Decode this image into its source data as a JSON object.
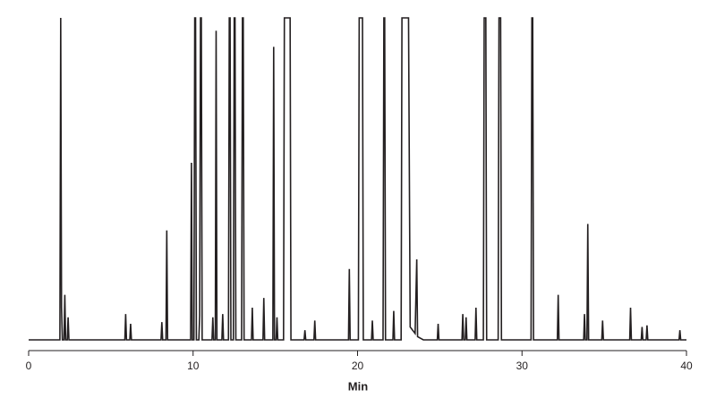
{
  "chart_data": {
    "type": "line",
    "xlabel": "Min",
    "color": "#231f20",
    "xlim": [
      0,
      40
    ],
    "xticks": [
      0,
      10,
      20,
      30,
      40
    ],
    "ylim": [
      0,
      100
    ],
    "x": [
      0,
      1.9,
      1.95,
      2.0,
      2.05,
      2.15,
      2.2,
      2.25,
      2.35,
      2.4,
      2.45,
      5.85,
      5.9,
      5.95,
      6.15,
      6.2,
      6.25,
      8.05,
      8.1,
      8.15,
      8.35,
      8.4,
      8.45,
      9.85,
      9.9,
      9.95,
      10.05,
      10.1,
      10.15,
      10.2,
      10.35,
      10.4,
      10.45,
      10.5,
      10.55,
      11.15,
      11.2,
      11.25,
      11.35,
      11.4,
      11.45,
      11.75,
      11.8,
      11.85,
      12.15,
      12.2,
      12.25,
      12.3,
      12.45,
      12.5,
      12.55,
      12.6,
      12.95,
      13.0,
      13.05,
      13.1,
      13.55,
      13.6,
      13.65,
      14.25,
      14.3,
      14.35,
      14.85,
      14.9,
      14.95,
      15.05,
      15.1,
      15.15,
      15.5,
      15.55,
      15.9,
      15.95,
      16.75,
      16.8,
      16.85,
      17.35,
      17.4,
      17.45,
      19.45,
      19.5,
      19.55,
      20.05,
      20.1,
      20.3,
      20.35,
      20.85,
      20.9,
      20.95,
      21.55,
      21.6,
      21.65,
      21.7,
      22.15,
      22.2,
      22.25,
      22.65,
      22.7,
      23.1,
      23.2,
      23.5,
      23.6,
      23.65,
      24.0,
      24.85,
      24.9,
      24.95,
      26.35,
      26.4,
      26.45,
      26.55,
      26.6,
      26.65,
      27.15,
      27.2,
      27.25,
      27.65,
      27.7,
      27.8,
      27.85,
      28.55,
      28.6,
      28.7,
      28.75,
      30.55,
      30.6,
      30.65,
      30.7,
      32.15,
      32.2,
      32.25,
      33.75,
      33.8,
      33.85,
      33.95,
      34.0,
      34.05,
      34.85,
      34.9,
      34.95,
      36.55,
      36.6,
      36.65,
      37.25,
      37.3,
      37.35,
      37.55,
      37.6,
      37.65,
      39.55,
      39.6,
      39.65,
      40
    ],
    "values": [
      0,
      0,
      100,
      10,
      0,
      0,
      14,
      0,
      0,
      7,
      0,
      0,
      8,
      0,
      0,
      5,
      0,
      0,
      5.5,
      0,
      0,
      34,
      0,
      0,
      55,
      0,
      0,
      100,
      100,
      0,
      0,
      7.5,
      100,
      100,
      0,
      0,
      7,
      0,
      0,
      96,
      0,
      0,
      8,
      0,
      0,
      100,
      100,
      0,
      0,
      100,
      100,
      0,
      0,
      100,
      100,
      0,
      0,
      10,
      0,
      0,
      13,
      0,
      0,
      91,
      0,
      0,
      7,
      0,
      0,
      100,
      100,
      0,
      0,
      3,
      0,
      0,
      6,
      0,
      0,
      22,
      0,
      0,
      100,
      100,
      0,
      0,
      6,
      0,
      0,
      100,
      100,
      0,
      0,
      9,
      0,
      0,
      100,
      100,
      4,
      2,
      25,
      1,
      0,
      0,
      5,
      0,
      0,
      8,
      0,
      0,
      7,
      0,
      0,
      10,
      0,
      0,
      100,
      100,
      0,
      0,
      100,
      100,
      0,
      0,
      100,
      100,
      0,
      0,
      14,
      0,
      0,
      8,
      0,
      0,
      36,
      0,
      0,
      6,
      0,
      0,
      10,
      0,
      0,
      4,
      0,
      0,
      4.5,
      0,
      0,
      3,
      0,
      0
    ]
  }
}
